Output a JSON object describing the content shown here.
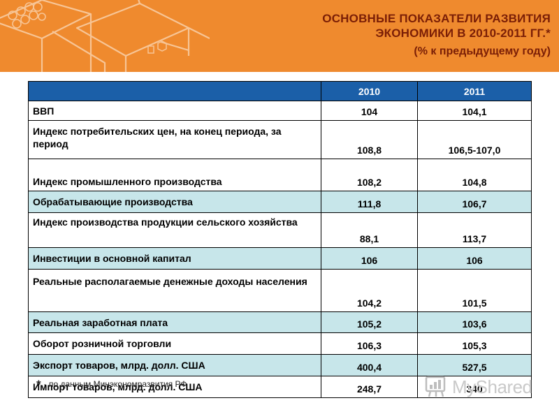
{
  "title": {
    "line1": "ОСНОВНЫЕ ПОКАЗАТЕЛИ РАЗВИТИЯ",
    "line2": "ЭКОНОМИКИ В 2010-2011 ГГ.*",
    "subtitle": "(% к предыдущему году)"
  },
  "table": {
    "columns": [
      "",
      "2010",
      "2011"
    ],
    "rows": [
      {
        "label": "ВВП",
        "y2010": "104",
        "y2011": "104,1"
      },
      {
        "label": "Индекс потребительских цен, на конец периода, за период",
        "y2010": "108,8",
        "y2011": "106,5-107,0"
      },
      {
        "label": "Индекс промышленного производства",
        "y2010": "108,2",
        "y2011": "104,8"
      },
      {
        "label": "Обрабатывающие производства",
        "y2010": "111,8",
        "y2011": "106,7"
      },
      {
        "label": "Индекс производства продукции сельского хозяйства",
        "y2010": "88,1",
        "y2011": "113,7"
      },
      {
        "label": "Инвестиции в основной капитал",
        "y2010": "106",
        "y2011": "106"
      },
      {
        "label": "Реальные располагаемые денежные доходы населения",
        "y2010": "104,2",
        "y2011": "101,5"
      },
      {
        "label": "Реальная заработная плата",
        "y2010": "105,2",
        "y2011": "103,6"
      },
      {
        "label": "Оборот розничной торговли",
        "y2010": "106,3",
        "y2011": "105,3"
      },
      {
        "label": "Экспорт товаров, млрд. долл. США",
        "y2010": "400,4",
        "y2011": "527,5"
      },
      {
        "label": "Импорт товаров, млрд. долл. США",
        "y2010": "248,7",
        "y2011": "340"
      }
    ]
  },
  "footnote": {
    "star": "*",
    "text": "- по данным Минэкономразвития РФ"
  },
  "logo": {
    "text": "MyShared",
    "icon": "myshared-logo-icon"
  },
  "colors": {
    "banner": "#ef8a2e",
    "header": "#1b5fa8",
    "teal_row": "#c7e6ea",
    "title_text": "#7a1e06"
  }
}
